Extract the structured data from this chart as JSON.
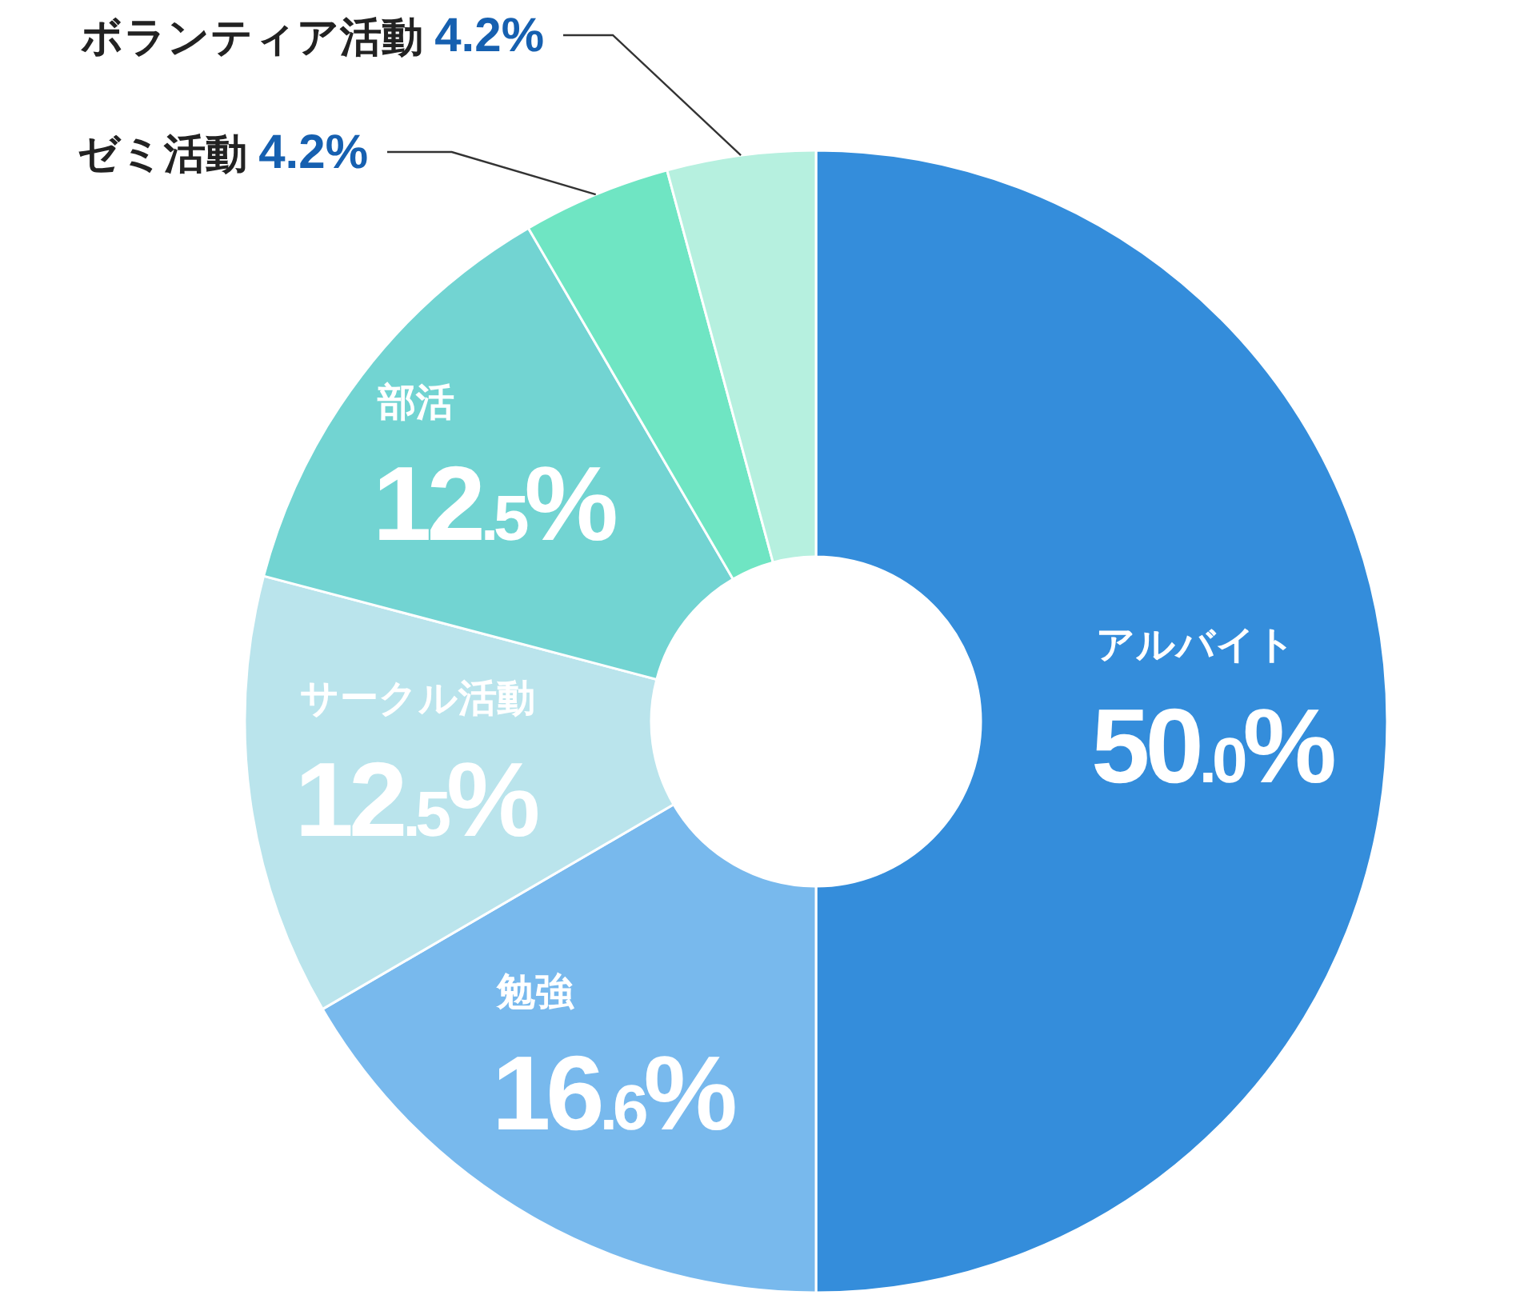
{
  "chart_data": {
    "type": "donut",
    "categories": [
      "アルバイト",
      "勉強",
      "サークル活動",
      "部活",
      "ゼミ活動",
      "ボランティア活動"
    ],
    "values": [
      50.0,
      16.6,
      12.5,
      12.5,
      4.2,
      4.2
    ],
    "value_labels": [
      "50.0%",
      "16.6%",
      "12.5%",
      "12.5%",
      "4.2%",
      "4.2%"
    ],
    "colors": [
      "#348ddb",
      "#78b9ed",
      "#bae4ec",
      "#72d4d2",
      "#6fe5c3",
      "#b6f0df"
    ]
  }
}
